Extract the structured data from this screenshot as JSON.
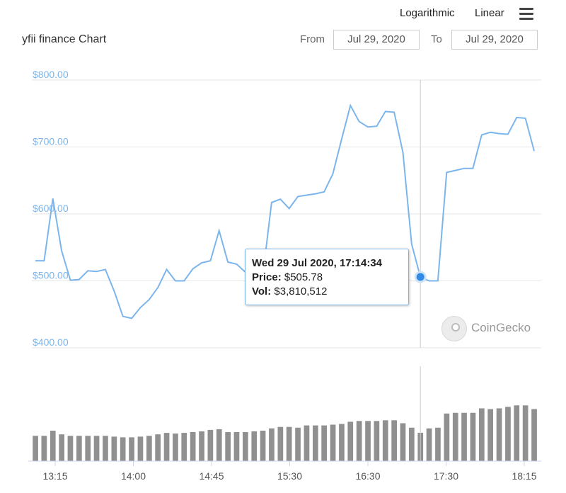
{
  "toolbar": {
    "logarithmic_label": "Logarithmic",
    "linear_label": "Linear",
    "menu_icon": "hamburger-menu-icon"
  },
  "header": {
    "title": "yfii finance Chart",
    "from_label": "From",
    "from_value": "Jul 29, 2020",
    "to_label": "To",
    "to_value": "Jul 29, 2020"
  },
  "tooltip": {
    "date": "Wed 29 Jul 2020, 17:14:34",
    "price_label": "Price:",
    "price_value": "$505.78",
    "vol_label": "Vol:",
    "vol_value": "$3,810,512"
  },
  "watermark": {
    "text": "CoinGecko",
    "icon": "coingecko-logo-icon"
  },
  "colors": {
    "line": "#7cb5ec",
    "volume": "#909090",
    "grid": "#e6e6e6",
    "axis_label": "#7cb5ec"
  },
  "chart_data": {
    "type": "line",
    "x_ticks": [
      "13:15",
      "14:00",
      "14:45",
      "15:30",
      "16:30",
      "17:30",
      "18:15"
    ],
    "y_ticks": [
      "$400.00",
      "$500.00",
      "$600.00",
      "$700.00",
      "$800.00"
    ],
    "ylim": [
      400,
      800
    ],
    "grid": true,
    "price": [
      530,
      530,
      623,
      545,
      501,
      502,
      515,
      514,
      517,
      485,
      447,
      444,
      460,
      472,
      490,
      517,
      500,
      500,
      518,
      527,
      530,
      575,
      528,
      525,
      513,
      510,
      510,
      617,
      622,
      608,
      626,
      628,
      630,
      633,
      660,
      712,
      762,
      738,
      730,
      731,
      753,
      752,
      692,
      555,
      505.78,
      500,
      500,
      662,
      665,
      668,
      668,
      718,
      722,
      720,
      719,
      744,
      743,
      694
    ],
    "volume": [
      3.4,
      3.4,
      4.1,
      3.6,
      3.4,
      3.4,
      3.4,
      3.4,
      3.4,
      3.3,
      3.2,
      3.2,
      3.3,
      3.4,
      3.6,
      3.8,
      3.7,
      3.8,
      3.9,
      4.0,
      4.2,
      4.3,
      3.9,
      3.9,
      3.9,
      4.0,
      4.1,
      4.4,
      4.6,
      4.6,
      4.5,
      4.8,
      4.8,
      4.8,
      4.9,
      5.0,
      5.3,
      5.4,
      5.4,
      5.4,
      5.5,
      5.5,
      5.1,
      4.5,
      3.81,
      4.4,
      4.5,
      6.4,
      6.5,
      6.5,
      6.5,
      7.1,
      7.0,
      7.1,
      7.3,
      7.5,
      7.5,
      7.0
    ],
    "highlight_index": 44
  }
}
